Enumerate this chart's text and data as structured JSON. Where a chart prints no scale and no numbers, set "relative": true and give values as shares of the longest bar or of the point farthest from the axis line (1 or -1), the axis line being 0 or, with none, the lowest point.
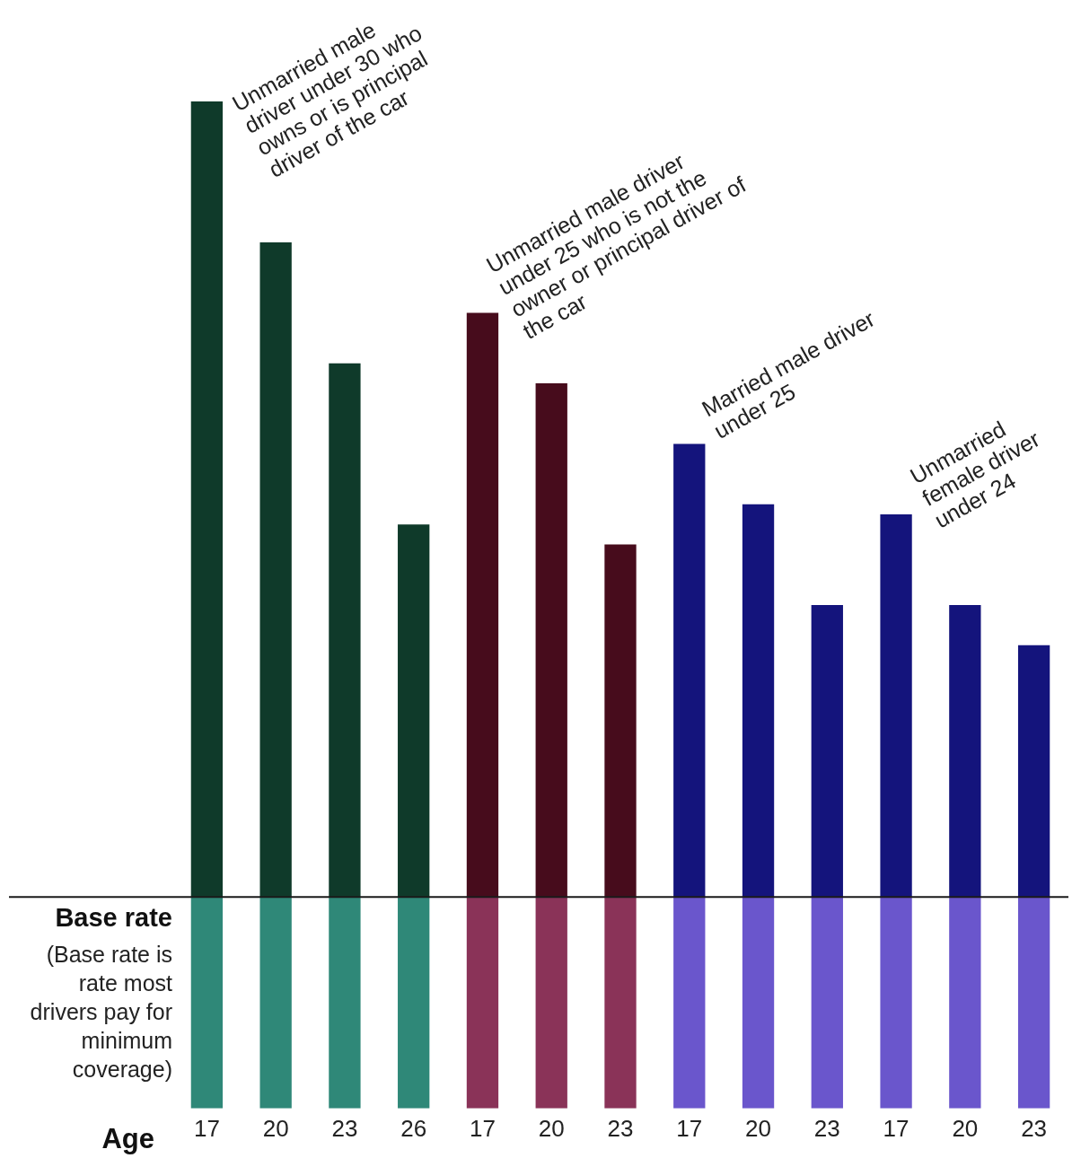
{
  "chart_data": {
    "type": "bar",
    "stacked": true,
    "relative": true,
    "xlabel": "Age",
    "categories": [
      "17",
      "20",
      "23",
      "26",
      "17",
      "20",
      "23",
      "17",
      "20",
      "23",
      "17",
      "20",
      "23"
    ],
    "series": [
      {
        "colors": [
          "#2f8878",
          "#2f8878",
          "#2f8878",
          "#2f8878",
          "#8a3358",
          "#8a3358",
          "#8a3358",
          "#6a56cc",
          "#6a56cc",
          "#6a56cc",
          "#6a56cc",
          "#6a56cc",
          "#6a56cc"
        ],
        "values": [
          0.21,
          0.21,
          0.21,
          0.21,
          0.21,
          0.21,
          0.21,
          0.21,
          0.21,
          0.21,
          0.21,
          0.21,
          0.21
        ]
      },
      {
        "colors": [
          "#0f3a2a",
          "#0f3a2a",
          "#0f3a2a",
          "#0f3a2a",
          "#470c1c",
          "#470c1c",
          "#470c1c",
          "#14147c",
          "#14147c",
          "#14147c",
          "#14147c",
          "#14147c",
          "#14147c"
        ],
        "values": [
          0.79,
          0.65,
          0.53,
          0.37,
          0.58,
          0.51,
          0.35,
          0.45,
          0.39,
          0.29,
          0.38,
          0.29,
          0.25
        ]
      }
    ],
    "ref_lines": [
      {
        "axis": "y",
        "value": 0.21,
        "label": "Base rate",
        "color": "#1a1a1a"
      }
    ],
    "annotations": [
      "Unmarried male driver under 30 who owns or is principal driver of the car",
      "Unmarried male driver under 25 who is not the owner or principal driver of the car",
      "Married male driver under 25",
      "Unmarried female driver under 24",
      "(Base rate is rate most drivers pay for minimum coverage)"
    ],
    "legend": false,
    "grid": false
  }
}
